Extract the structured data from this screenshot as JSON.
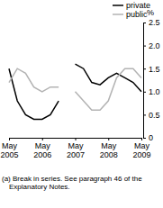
{
  "chart_data": {
    "type": "line",
    "y_label": "%",
    "categories": [
      "May 2005",
      null,
      null,
      null,
      "May 2006",
      null,
      null,
      null,
      "May 2007",
      null,
      null,
      null,
      "May 2008",
      null,
      null,
      null,
      "May 2009"
    ],
    "series": [
      {
        "name": "private",
        "color": "#000000",
        "values": [
          1.5,
          0.8,
          0.5,
          0.4,
          0.4,
          0.5,
          0.8,
          null,
          1.6,
          1.5,
          1.2,
          1.15,
          1.3,
          1.4,
          1.3,
          1.2,
          1.0
        ]
      },
      {
        "name": "public",
        "color": "#b3b3b3",
        "values": [
          1.2,
          1.5,
          1.4,
          1.1,
          1.0,
          1.1,
          1.1,
          null,
          1.0,
          0.8,
          0.6,
          0.6,
          0.8,
          1.3,
          1.5,
          1.5,
          1.3
        ]
      }
    ],
    "ylim": [
      0,
      2.5
    ],
    "yticks": [
      0,
      {
        "value": 0.5,
        "label": "0.5"
      },
      {
        "value": 1,
        "label": "1.0"
      },
      {
        "value": 1.5,
        "label": "1.5"
      },
      {
        "value": 2,
        "label": "2.0"
      },
      {
        "value": 2.5,
        "label": "2.5"
      }
    ],
    "legend": "top-right",
    "annotations": [
      "(a) Break in series. See paragraph 46 of the Explanatory Notes."
    ]
  }
}
